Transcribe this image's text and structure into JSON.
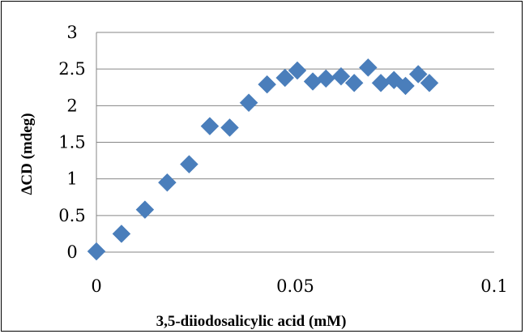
{
  "chart_data": {
    "type": "scatter",
    "title": "",
    "xlabel": "3,5-diiodosalicylic acid (mM)",
    "ylabel": "ΔCD (mdeg)",
    "xlim": [
      0,
      0.1
    ],
    "ylim": [
      0,
      3
    ],
    "x_ticks": [
      "0",
      "0.05",
      "0.1"
    ],
    "y_ticks": [
      "0",
      "0.5",
      "1",
      "1.5",
      "2",
      "2.5",
      "3"
    ],
    "grid": {
      "horizontal": true,
      "vertical": false
    },
    "legend": "none",
    "marker": "diamond",
    "marker_color": "#4a7ebb",
    "series": [
      {
        "x": [
          0,
          0.0063,
          0.0122,
          0.0178,
          0.0233,
          0.0285,
          0.0335,
          0.0383,
          0.0429,
          0.0474,
          0.0505,
          0.0544,
          0.0577,
          0.0615,
          0.0648,
          0.0683,
          0.0715,
          0.0748,
          0.0777,
          0.0809,
          0.0837
        ],
        "y": [
          0.01,
          0.25,
          0.58,
          0.95,
          1.2,
          1.72,
          1.7,
          2.04,
          2.29,
          2.38,
          2.48,
          2.33,
          2.37,
          2.4,
          2.31,
          2.52,
          2.31,
          2.35,
          2.27,
          2.43,
          2.31
        ]
      }
    ]
  }
}
